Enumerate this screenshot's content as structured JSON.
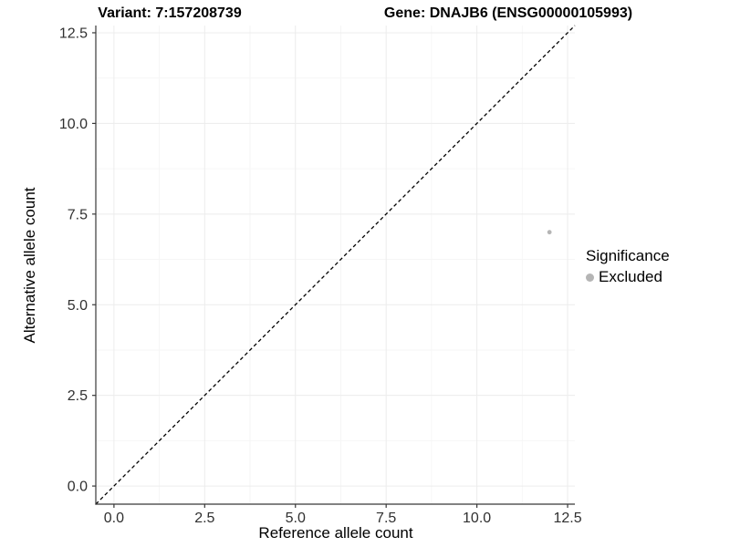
{
  "chart_data": {
    "type": "scatter",
    "title_left": "Variant: 7:157208739",
    "title_right": "Gene: DNAJB6 (ENSG00000105993)",
    "xlabel": "Reference allele count",
    "ylabel": "Alternative allele count",
    "xlim": [
      -0.5,
      12.7
    ],
    "ylim": [
      -0.5,
      12.7
    ],
    "x_tick_labels": [
      "0.0",
      "2.5",
      "5.0",
      "7.5",
      "10.0",
      "12.5"
    ],
    "y_tick_labels": [
      "0.0",
      "2.5",
      "5.0",
      "7.5",
      "10.0",
      "12.5"
    ],
    "grid": true,
    "series": [
      {
        "name": "Excluded",
        "color": "#b5b5b5",
        "points": [
          {
            "x": 12,
            "y": 7
          }
        ],
        "point_radius": 2.4
      }
    ],
    "reference_line": {
      "type": "identity",
      "style": "dashed",
      "color": "#000000"
    },
    "legend": {
      "title": "Significance",
      "position": "right",
      "items": [
        {
          "label": "Excluded",
          "color": "#b5b5b5"
        }
      ]
    },
    "style": {
      "axis_line_color": "#383838",
      "major_grid_color": "#ececec",
      "minor_grid_color": "#f6f6f6",
      "tick_label_color": "#303030"
    }
  }
}
